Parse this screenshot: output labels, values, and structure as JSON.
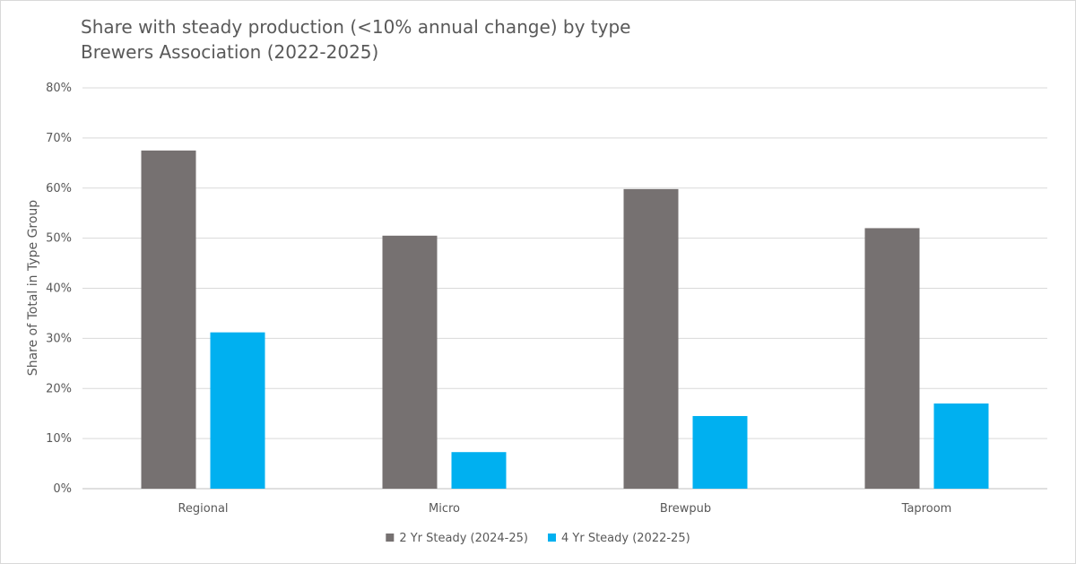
{
  "chart_data": {
    "type": "bar",
    "title": "Share with steady production (<10% annual change) by type",
    "subtitle": "Brewers Association (2022-2025)",
    "ylabel": "Share of Total in Type Group",
    "xlabel": "",
    "categories": [
      "Regional",
      "Micro",
      "Brewpub",
      "Taproom"
    ],
    "series": [
      {
        "name": "2 Yr Steady (2024-25)",
        "color": "#767171",
        "values": [
          67.5,
          50.5,
          59.8,
          52.0
        ]
      },
      {
        "name": "4 Yr Steady (2022-25)",
        "color": "#00b0f0",
        "values": [
          31.2,
          7.3,
          14.5,
          17.0
        ]
      }
    ],
    "ylim": [
      0,
      80
    ],
    "yticks": [
      "0%",
      "10%",
      "20%",
      "30%",
      "40%",
      "50%",
      "60%",
      "70%",
      "80%"
    ],
    "grid": true,
    "legend_position": "bottom"
  }
}
